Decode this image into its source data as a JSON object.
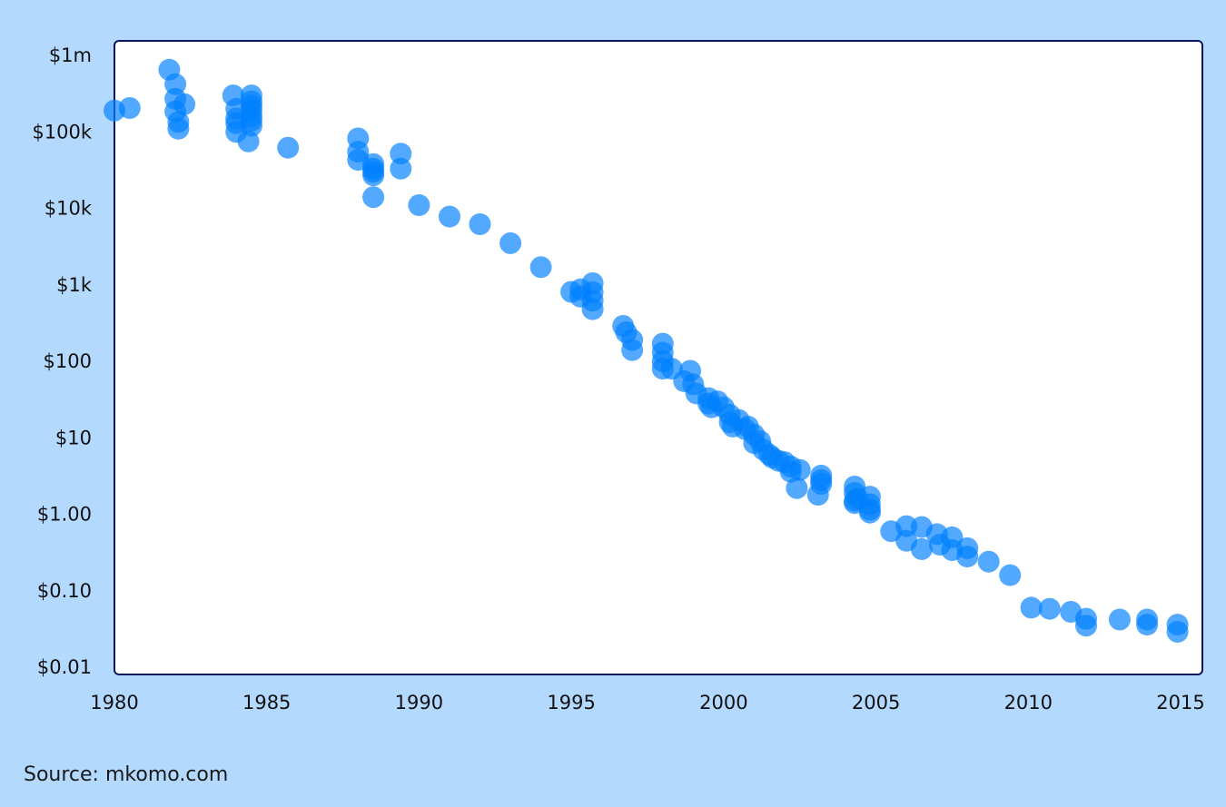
{
  "source": "Source: mkomo.com",
  "colors": {
    "background": "#b3dafe",
    "plot_background": "#ffffff",
    "plot_border": "#0b1560",
    "point": "#0080ff"
  },
  "chart_data": {
    "type": "scatter",
    "title": "",
    "xlabel": "",
    "ylabel": "",
    "xlim": [
      1980,
      2015
    ],
    "ylim": [
      0.01,
      1000000
    ],
    "y_scale": "log",
    "grid": false,
    "legend": "none",
    "x_ticks": [
      1980,
      1985,
      1990,
      1995,
      2000,
      2005,
      2010,
      2015
    ],
    "x_tick_labels": [
      "1980",
      "1985",
      "1990",
      "1995",
      "2000",
      "2005",
      "2010",
      "2015"
    ],
    "y_ticks": [
      0.01,
      0.1,
      1,
      10,
      100,
      1000,
      10000,
      100000,
      1000000
    ],
    "y_tick_labels": [
      "$0.01",
      "$0.10",
      "$1.00",
      "$10",
      "$100",
      "$1k",
      "$10k",
      "$100k",
      "$1m"
    ],
    "points": [
      [
        1980.0,
        190000
      ],
      [
        1980.5,
        205000
      ],
      [
        1981.8,
        650000
      ],
      [
        1982.0,
        420000
      ],
      [
        1982.0,
        270000
      ],
      [
        1982.0,
        185000
      ],
      [
        1982.1,
        135000
      ],
      [
        1982.1,
        110000
      ],
      [
        1982.3,
        230000
      ],
      [
        1983.9,
        300000
      ],
      [
        1984.0,
        200000
      ],
      [
        1984.0,
        150000
      ],
      [
        1984.0,
        130000
      ],
      [
        1984.0,
        100000
      ],
      [
        1984.5,
        300000
      ],
      [
        1984.5,
        250000
      ],
      [
        1984.5,
        220000
      ],
      [
        1984.5,
        190000
      ],
      [
        1984.5,
        160000
      ],
      [
        1984.5,
        140000
      ],
      [
        1984.5,
        120000
      ],
      [
        1984.4,
        75000
      ],
      [
        1985.7,
        62000
      ],
      [
        1988.0,
        82000
      ],
      [
        1988.0,
        55000
      ],
      [
        1988.0,
        43000
      ],
      [
        1988.5,
        38000
      ],
      [
        1988.5,
        33000
      ],
      [
        1988.5,
        30000
      ],
      [
        1988.5,
        27000
      ],
      [
        1988.5,
        14000
      ],
      [
        1989.4,
        52000
      ],
      [
        1989.4,
        33000
      ],
      [
        1990.0,
        11000
      ],
      [
        1991.0,
        7800
      ],
      [
        1992.0,
        6200
      ],
      [
        1993.0,
        3500
      ],
      [
        1994.0,
        1700
      ],
      [
        1995.0,
        810
      ],
      [
        1995.3,
        870
      ],
      [
        1995.3,
        700
      ],
      [
        1995.7,
        1050
      ],
      [
        1995.7,
        800
      ],
      [
        1995.7,
        620
      ],
      [
        1995.7,
        480
      ],
      [
        1996.7,
        290
      ],
      [
        1996.8,
        240
      ],
      [
        1997.0,
        190
      ],
      [
        1997.0,
        140
      ],
      [
        1998.0,
        170
      ],
      [
        1998.0,
        130
      ],
      [
        1998.0,
        100
      ],
      [
        1998.0,
        80
      ],
      [
        1998.3,
        80
      ],
      [
        1998.7,
        55
      ],
      [
        1998.9,
        75
      ],
      [
        1999.0,
        50
      ],
      [
        1999.1,
        38
      ],
      [
        1999.5,
        33
      ],
      [
        1999.5,
        28
      ],
      [
        1999.6,
        25
      ],
      [
        1999.8,
        30
      ],
      [
        2000.0,
        25
      ],
      [
        2000.2,
        20
      ],
      [
        2000.2,
        16
      ],
      [
        2000.3,
        14
      ],
      [
        2000.5,
        17
      ],
      [
        2000.7,
        13
      ],
      [
        2000.8,
        14
      ],
      [
        2001.0,
        11
      ],
      [
        2001.0,
        8.5
      ],
      [
        2001.2,
        9
      ],
      [
        2001.3,
        7
      ],
      [
        2001.5,
        6
      ],
      [
        2001.6,
        5.5
      ],
      [
        2001.8,
        5
      ],
      [
        2002.0,
        4.8
      ],
      [
        2002.2,
        4.2
      ],
      [
        2002.2,
        3.6
      ],
      [
        2002.5,
        3.8
      ],
      [
        2002.4,
        2.2
      ],
      [
        2003.1,
        1.8
      ],
      [
        2003.2,
        3.2
      ],
      [
        2003.2,
        2.8
      ],
      [
        2003.2,
        2.5
      ],
      [
        2004.3,
        2.3
      ],
      [
        2004.3,
        1.9
      ],
      [
        2004.3,
        1.5
      ],
      [
        2004.3,
        1.4
      ],
      [
        2004.4,
        1.6
      ],
      [
        2004.8,
        1.7
      ],
      [
        2004.8,
        1.35
      ],
      [
        2004.8,
        1.15
      ],
      [
        2004.8,
        1.05
      ],
      [
        2005.5,
        0.6
      ],
      [
        2006.0,
        0.7
      ],
      [
        2006.0,
        0.45
      ],
      [
        2006.5,
        0.68
      ],
      [
        2006.5,
        0.35
      ],
      [
        2007.0,
        0.55
      ],
      [
        2007.1,
        0.4
      ],
      [
        2007.5,
        0.5
      ],
      [
        2007.5,
        0.34
      ],
      [
        2008.0,
        0.36
      ],
      [
        2008.0,
        0.28
      ],
      [
        2008.7,
        0.24
      ],
      [
        2009.4,
        0.16
      ],
      [
        2010.1,
        0.06
      ],
      [
        2010.7,
        0.058
      ],
      [
        2011.4,
        0.053
      ],
      [
        2011.9,
        0.043
      ],
      [
        2011.9,
        0.035
      ],
      [
        2013.0,
        0.042
      ],
      [
        2013.9,
        0.042
      ],
      [
        2013.9,
        0.036
      ],
      [
        2014.9,
        0.036
      ],
      [
        2014.9,
        0.029
      ]
    ]
  }
}
